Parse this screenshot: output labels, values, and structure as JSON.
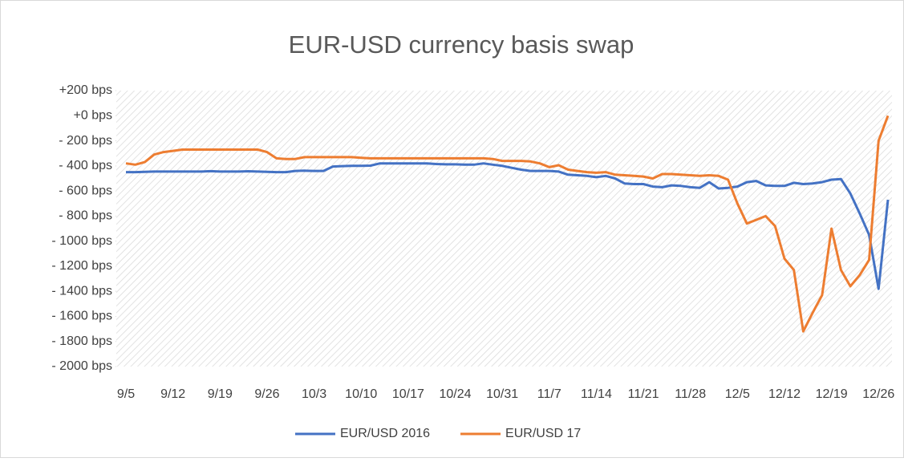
{
  "chart_data": {
    "type": "line",
    "title": "EUR-USD currency basis swap",
    "categories": [
      "9/5",
      null,
      null,
      null,
      null,
      "9/12",
      null,
      null,
      null,
      null,
      "9/19",
      null,
      null,
      null,
      null,
      "9/26",
      null,
      null,
      null,
      null,
      "10/3",
      null,
      null,
      null,
      null,
      "10/10",
      null,
      null,
      null,
      null,
      "10/17",
      null,
      null,
      null,
      null,
      "10/24",
      null,
      null,
      null,
      null,
      "10/31",
      null,
      null,
      null,
      null,
      "11/7",
      null,
      null,
      null,
      null,
      "11/14",
      null,
      null,
      null,
      null,
      "11/21",
      null,
      null,
      null,
      null,
      "11/28",
      null,
      null,
      null,
      null,
      "12/5",
      null,
      null,
      null,
      null,
      "12/12",
      null,
      null,
      null,
      null,
      "12/19",
      null,
      null,
      null,
      null,
      "12/26",
      null
    ],
    "series": [
      {
        "name": "EUR/USD 2016",
        "color": "#4472c4",
        "values": [
          -450,
          -450,
          -448,
          -445,
          -445,
          -445,
          -445,
          -445,
          -445,
          -442,
          -445,
          -445,
          -445,
          -443,
          -445,
          -447,
          -450,
          -450,
          -440,
          -438,
          -440,
          -440,
          -405,
          -402,
          -400,
          -400,
          -398,
          -380,
          -380,
          -380,
          -380,
          -380,
          -380,
          -385,
          -388,
          -388,
          -390,
          -390,
          -380,
          -390,
          -400,
          -415,
          -430,
          -440,
          -440,
          -440,
          -445,
          -470,
          -475,
          -480,
          -490,
          -480,
          -500,
          -540,
          -545,
          -545,
          -565,
          -570,
          -555,
          -560,
          -570,
          -575,
          -530,
          -580,
          -575,
          -565,
          -530,
          -520,
          -555,
          -560,
          -560,
          -535,
          -545,
          -540,
          -530,
          -510,
          -505,
          -620,
          -780,
          -950,
          -1380,
          -670
        ]
      },
      {
        "name": "EUR/USD 17",
        "color": "#ed7d31",
        "values": [
          -380,
          -390,
          -370,
          -310,
          -290,
          -280,
          -270,
          -270,
          -270,
          -270,
          -270,
          -270,
          -270,
          -270,
          -270,
          -290,
          -340,
          -345,
          -345,
          -330,
          -330,
          -330,
          -330,
          -330,
          -330,
          -335,
          -340,
          -340,
          -340,
          -340,
          -340,
          -340,
          -340,
          -340,
          -340,
          -340,
          -340,
          -340,
          -340,
          -345,
          -360,
          -360,
          -360,
          -365,
          -380,
          -410,
          -395,
          -430,
          -440,
          -450,
          -455,
          -450,
          -470,
          -475,
          -480,
          -485,
          -500,
          -465,
          -465,
          -470,
          -475,
          -480,
          -475,
          -480,
          -510,
          -700,
          -860,
          -830,
          -800,
          -880,
          -1140,
          -1230,
          -1720,
          -1570,
          -1430,
          -900,
          -1230,
          -1360,
          -1270,
          -1150,
          -200,
          0
        ]
      }
    ],
    "ylim": [
      -2000,
      200
    ],
    "yticks": [
      {
        "value": -2000,
        "label": "- 2000 bps"
      },
      {
        "value": -1800,
        "label": "- 1800 bps"
      },
      {
        "value": -1600,
        "label": "- 1600 bps"
      },
      {
        "value": -1400,
        "label": "- 1400 bps"
      },
      {
        "value": -1200,
        "label": "- 1200 bps"
      },
      {
        "value": -1000,
        "label": "- 1000 bps"
      },
      {
        "value": -800,
        "label": "- 800 bps"
      },
      {
        "value": -600,
        "label": "- 600 bps"
      },
      {
        "value": -400,
        "label": "- 400 bps"
      },
      {
        "value": -200,
        "label": "- 200 bps"
      },
      {
        "value": 0,
        "label": "+0 bps"
      },
      {
        "value": 200,
        "label": "+200 bps"
      }
    ],
    "grid": false,
    "legend": "bottom"
  }
}
